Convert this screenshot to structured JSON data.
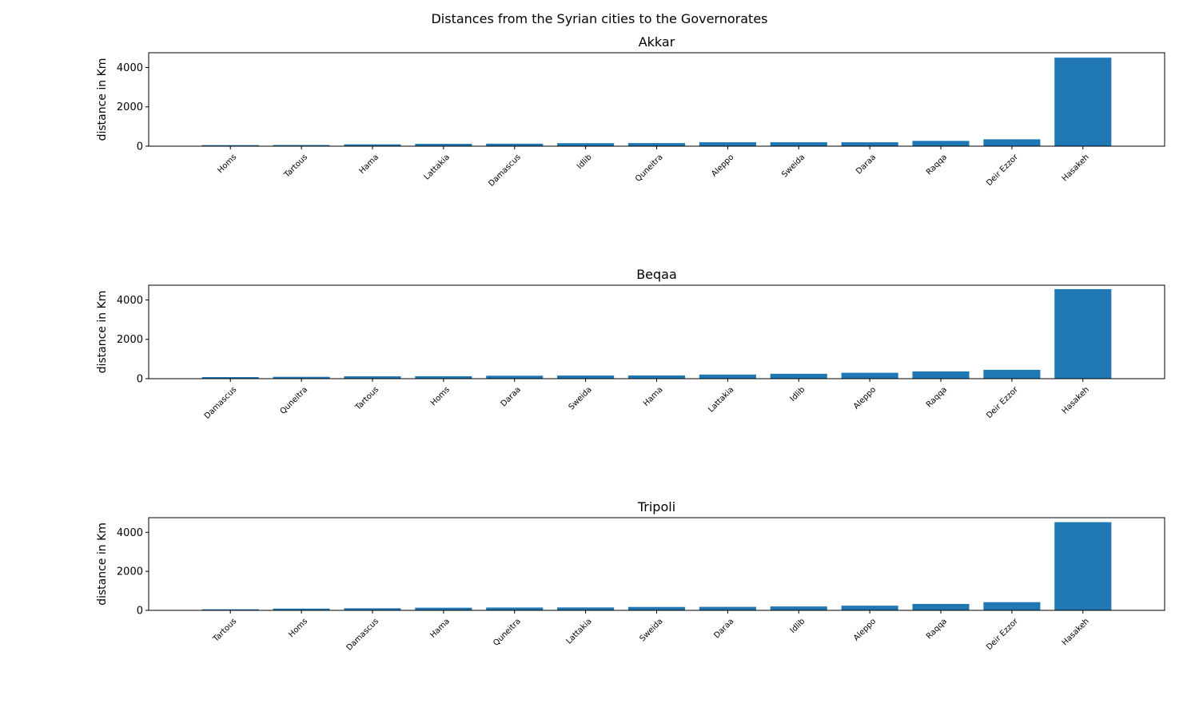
{
  "figure_title": "Distances from the Syrian cities to the Governorates",
  "bar_color": "#1f77b4",
  "chart_data": [
    {
      "type": "bar",
      "title": "Akkar",
      "xlabel": "",
      "ylabel": "distance in Km",
      "ylim": [
        0,
        4750
      ],
      "yticks": [
        0,
        2000,
        4000
      ],
      "grid": false,
      "categories": [
        "Homs",
        "Tartous",
        "Hama",
        "Lattakia",
        "Damascus",
        "Idlib",
        "Quneitra",
        "Aleppo",
        "Sweida",
        "Daraa",
        "Raqqa",
        "Deir Ezzor",
        "Hasakeh"
      ],
      "values": [
        55,
        60,
        95,
        120,
        130,
        155,
        160,
        200,
        200,
        200,
        270,
        350,
        4500
      ]
    },
    {
      "type": "bar",
      "title": "Beqaa",
      "xlabel": "",
      "ylabel": "distance in Km",
      "ylim": [
        0,
        4750
      ],
      "yticks": [
        0,
        2000,
        4000
      ],
      "grid": false,
      "categories": [
        "Damascus",
        "Quneitra",
        "Tartous",
        "Homs",
        "Daraa",
        "Sweida",
        "Hama",
        "Lattakia",
        "Idlib",
        "Aleppo",
        "Raqqa",
        "Deir Ezzor",
        "Hasakeh"
      ],
      "values": [
        80,
        95,
        120,
        125,
        150,
        160,
        165,
        210,
        250,
        300,
        370,
        450,
        4550
      ]
    },
    {
      "type": "bar",
      "title": "Tripoli",
      "xlabel": "",
      "ylabel": "distance in Km",
      "ylim": [
        0,
        4750
      ],
      "yticks": [
        0,
        2000,
        4000
      ],
      "grid": false,
      "categories": [
        "Tartous",
        "Homs",
        "Damascus",
        "Hama",
        "Quneitra",
        "Lattakia",
        "Sweida",
        "Daraa",
        "Idlib",
        "Aleppo",
        "Raqqa",
        "Deir Ezzor",
        "Hasakeh"
      ],
      "values": [
        55,
        90,
        105,
        135,
        145,
        150,
        175,
        180,
        200,
        240,
        330,
        420,
        4520
      ]
    }
  ]
}
